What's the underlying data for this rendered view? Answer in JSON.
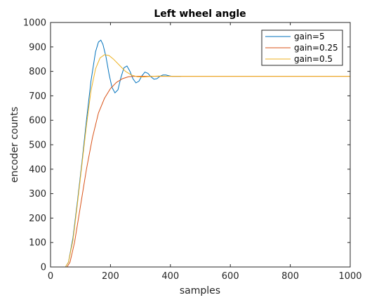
{
  "chart_data": {
    "type": "line",
    "title": "Left wheel angle",
    "xlabel": "samples",
    "ylabel": "encoder counts",
    "xlim": [
      0,
      1000
    ],
    "ylim": [
      0,
      1000
    ],
    "xticks": [
      "0",
      "200",
      "400",
      "600",
      "800",
      "1000"
    ],
    "yticks": [
      "0",
      "100",
      "200",
      "300",
      "400",
      "500",
      "600",
      "700",
      "800",
      "900",
      "1000"
    ],
    "grid": false,
    "legend_position": "top-right",
    "series": [
      {
        "name": "gain=5",
        "color": "#0072BD",
        "x": [
          0,
          50,
          60,
          75,
          90,
          105,
          120,
          135,
          150,
          160,
          168,
          175,
          185,
          195,
          205,
          215,
          225,
          235,
          245,
          255,
          265,
          275,
          285,
          295,
          305,
          315,
          325,
          335,
          345,
          355,
          365,
          375,
          385,
          395,
          405,
          415,
          425,
          435
        ],
        "y": [
          0,
          0,
          20,
          120,
          270,
          430,
          600,
          760,
          880,
          920,
          928,
          910,
          860,
          790,
          735,
          712,
          725,
          775,
          815,
          822,
          800,
          770,
          753,
          760,
          782,
          797,
          792,
          778,
          768,
          770,
          780,
          785,
          785,
          782,
          780,
          780,
          780,
          780
        ]
      },
      {
        "name": "gain=0.25",
        "color": "#D95319",
        "x": [
          0,
          55,
          65,
          80,
          100,
          120,
          140,
          160,
          180,
          200,
          220,
          240,
          260,
          280,
          300,
          330,
          360,
          400,
          500,
          600,
          700,
          800,
          900,
          1000
        ],
        "y": [
          0,
          0,
          20,
          100,
          250,
          400,
          530,
          630,
          690,
          730,
          755,
          770,
          778,
          780,
          780,
          780,
          780,
          780,
          780,
          780,
          780,
          780,
          780,
          780
        ]
      },
      {
        "name": "gain=0.5",
        "color": "#EDB120",
        "x": [
          0,
          50,
          60,
          75,
          90,
          105,
          120,
          135,
          150,
          165,
          180,
          195,
          210,
          230,
          250,
          270,
          290,
          310,
          330,
          360,
          400,
          500,
          600,
          700,
          800,
          900,
          1000
        ],
        "y": [
          0,
          0,
          20,
          110,
          260,
          420,
          580,
          720,
          810,
          855,
          868,
          865,
          850,
          825,
          800,
          785,
          778,
          777,
          779,
          781,
          780,
          780,
          780,
          780,
          780,
          780,
          780
        ]
      }
    ]
  }
}
